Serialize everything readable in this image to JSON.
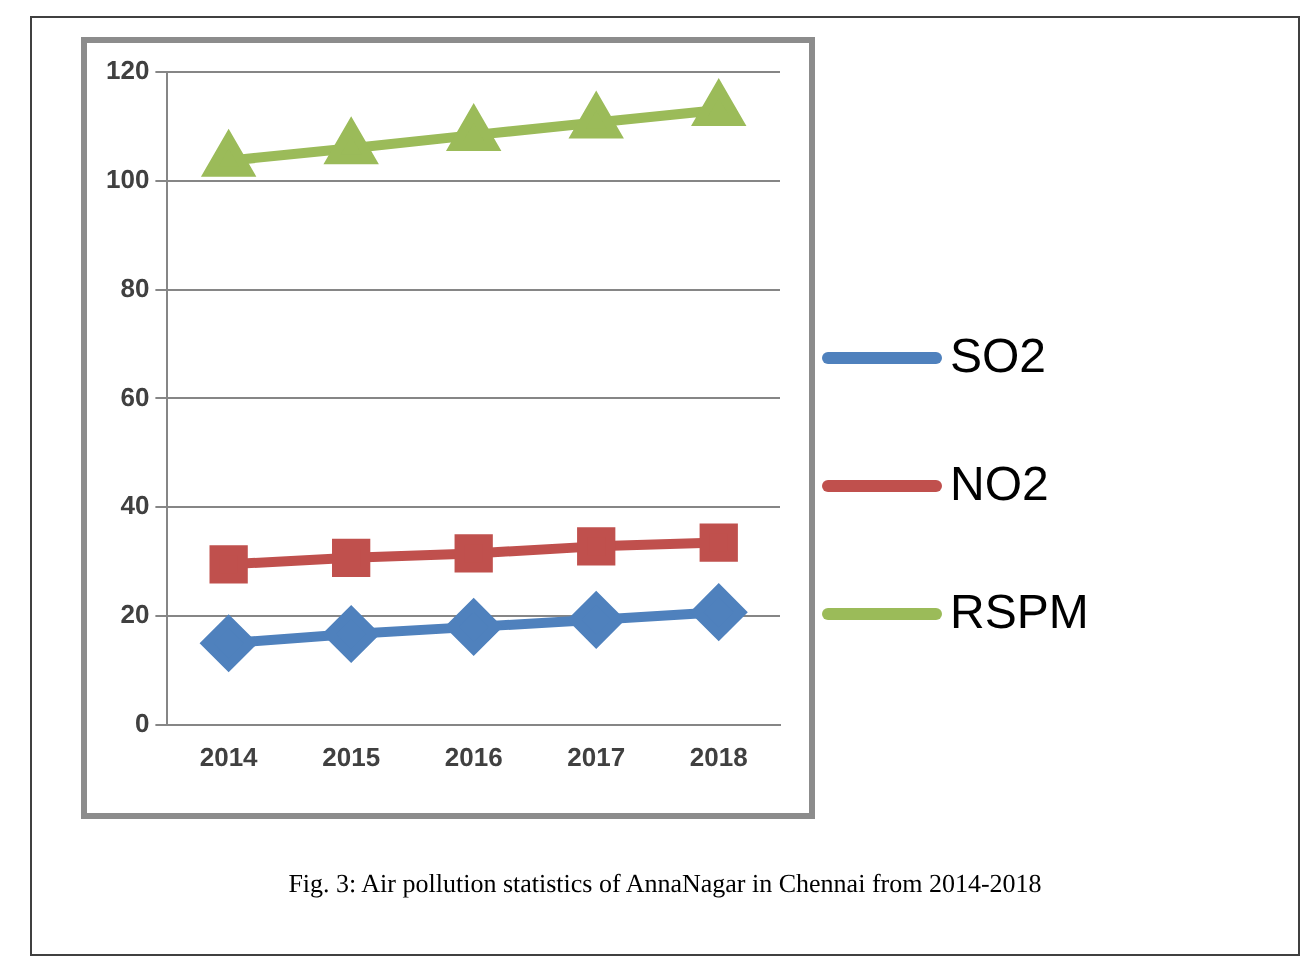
{
  "chart_data": {
    "type": "line",
    "categories": [
      "2014",
      "2015",
      "2016",
      "2017",
      "2018"
    ],
    "series": [
      {
        "name": "SO2",
        "color": "#4f81bd",
        "marker": "diamond",
        "values": [
          15,
          16.7,
          18,
          19.3,
          20.7
        ]
      },
      {
        "name": "NO2",
        "color": "#c0504d",
        "marker": "square",
        "values": [
          29.5,
          30.7,
          31.5,
          32.8,
          33.5
        ]
      },
      {
        "name": "RSPM",
        "color": "#9bbb59",
        "marker": "triangle",
        "values": [
          103.7,
          106,
          108.4,
          110.7,
          113
        ]
      }
    ],
    "ylim": [
      0,
      120
    ],
    "yticks": [
      0,
      20,
      40,
      60,
      80,
      100,
      120
    ],
    "grid": "y",
    "legend": "right",
    "line_style": "solid",
    "annotations": [
      "Fig. 3: Air pollution statistics of AnnaNagar in Chennai from 2014-2018"
    ]
  }
}
